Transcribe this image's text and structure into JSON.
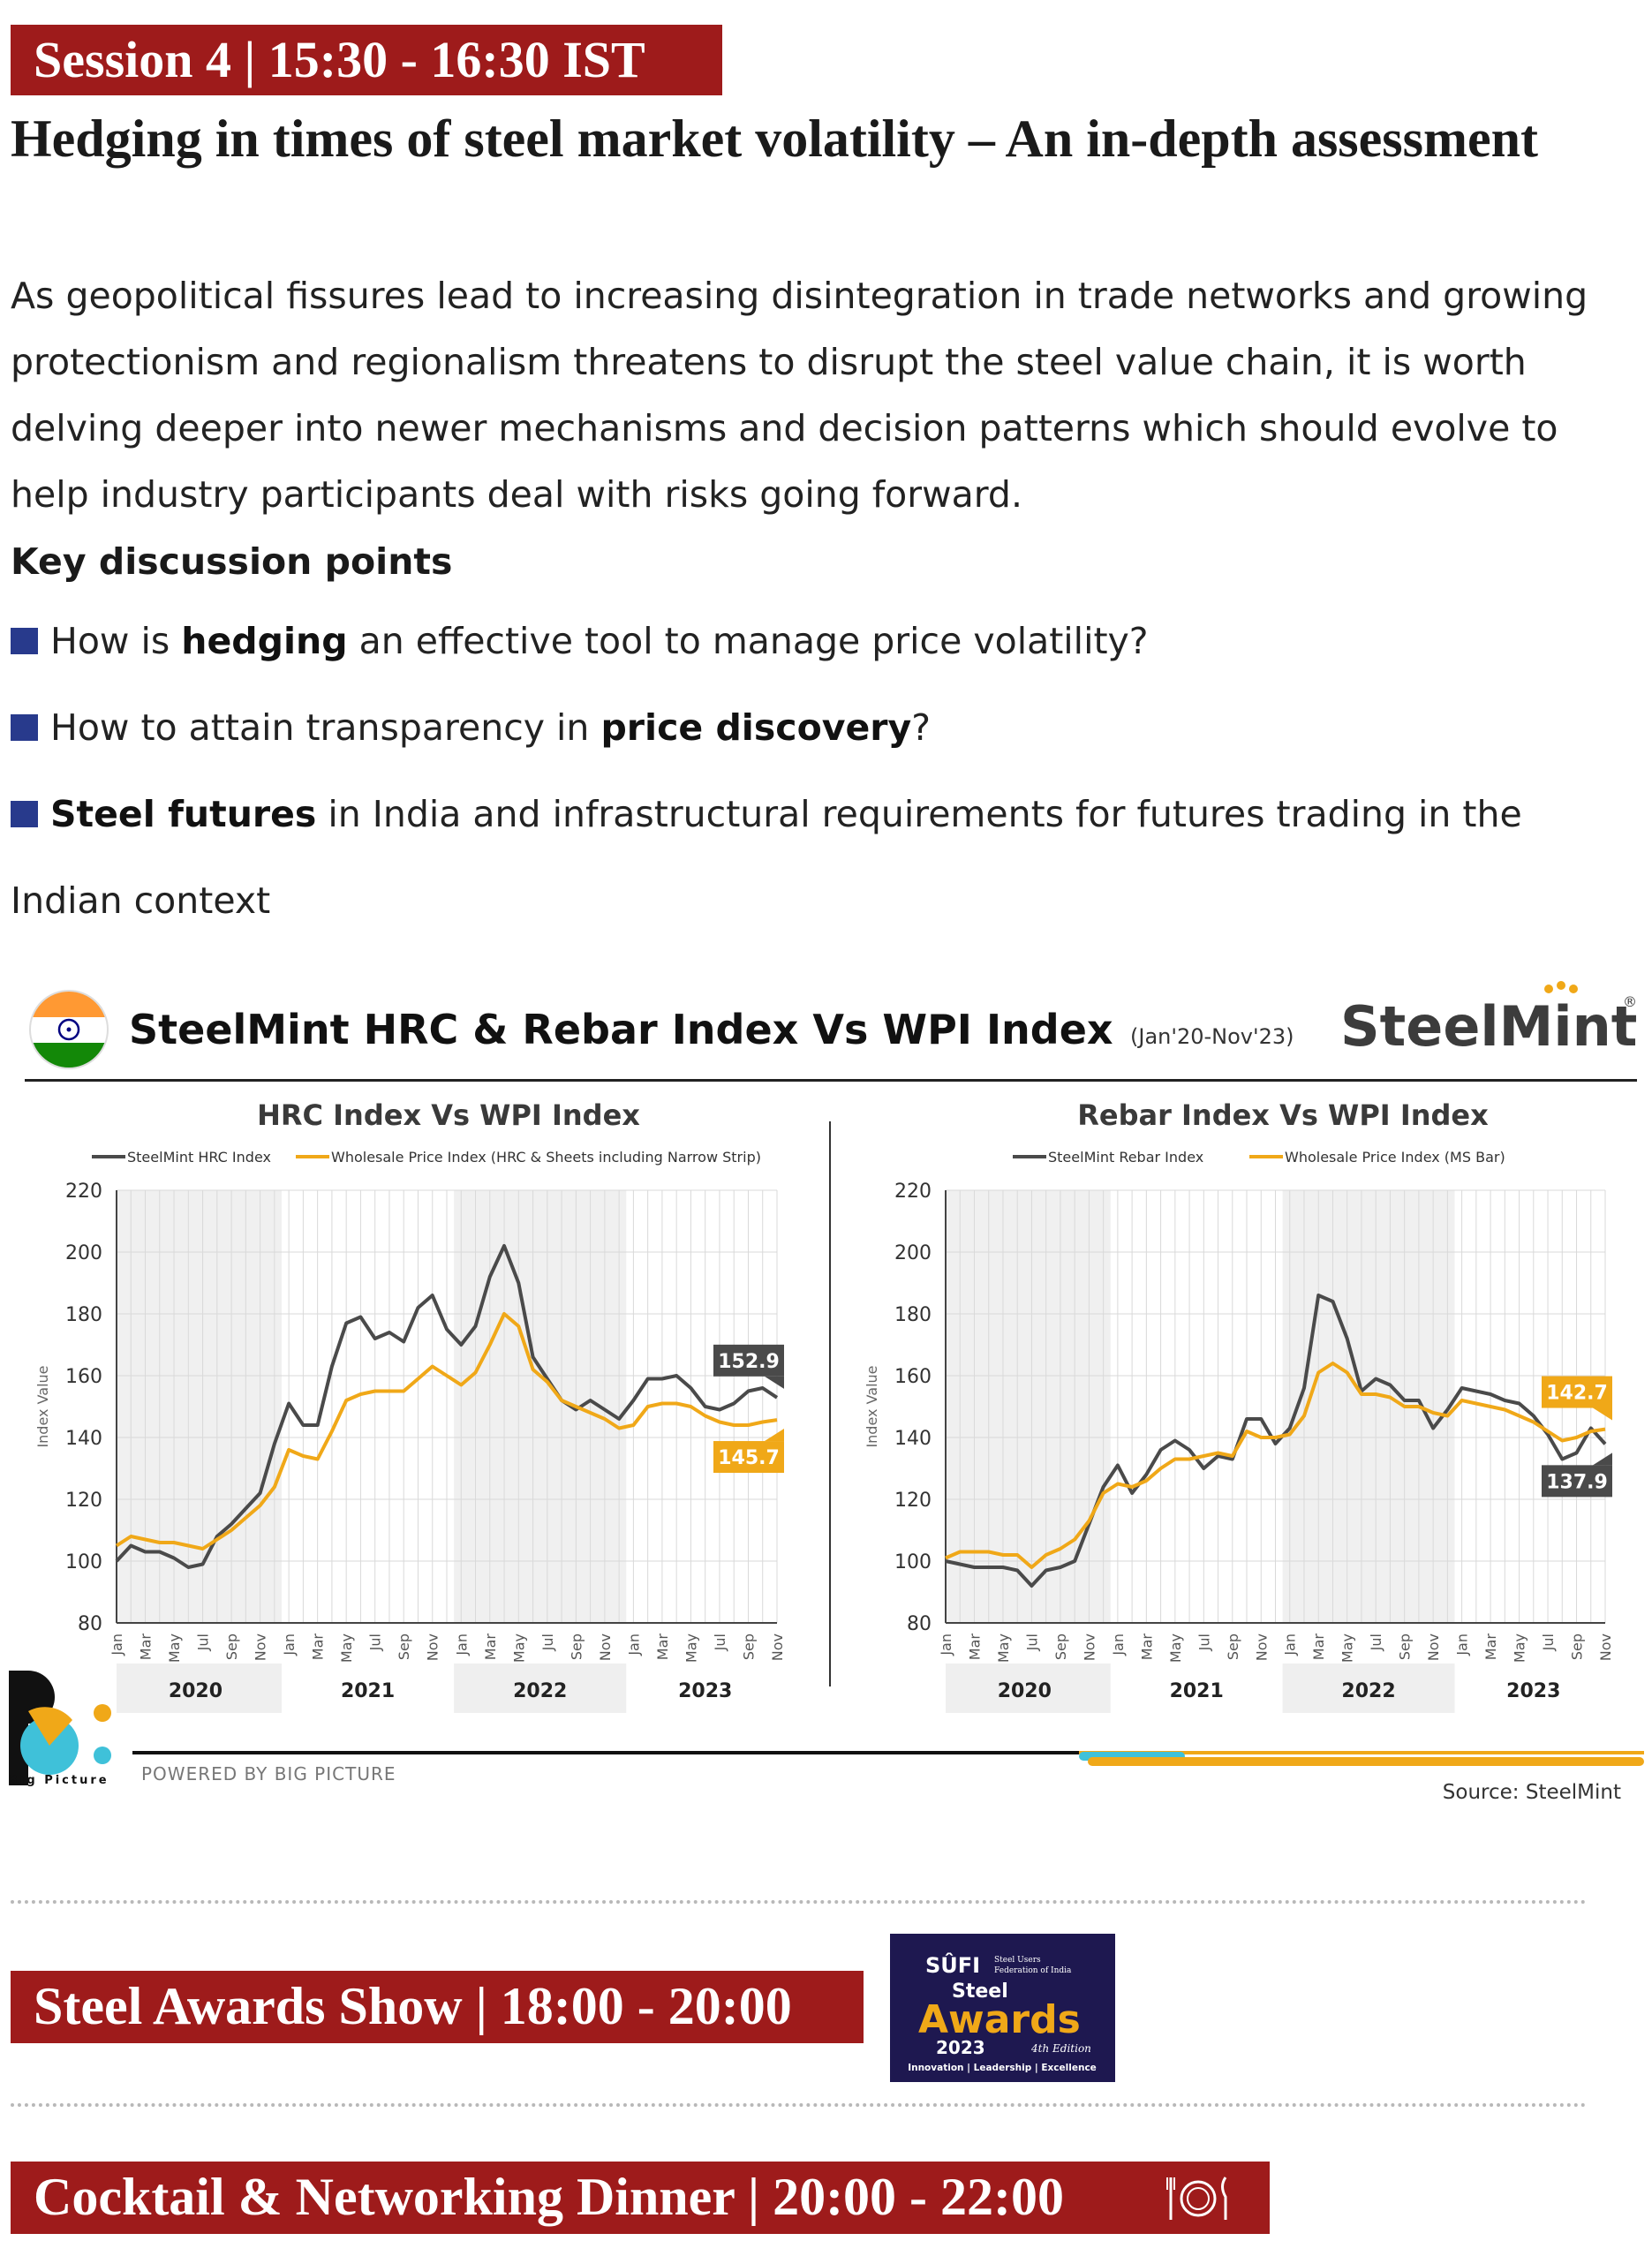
{
  "sessions": {
    "session4": "Session 4 | 15:30 - 16:30 IST",
    "awards": "Steel Awards Show | 18:00 - 20:00",
    "dinner": "Cocktail & Networking Dinner | 20:00 - 22:00"
  },
  "article": {
    "title": "Hedging in times of steel market volatility – An in-depth assessment",
    "intro": "As geopolitical fissures lead to increasing disintegration in trade networks and growing protectionism and regionalism threatens to disrupt the steel value chain, it is worth delving deeper into newer mechanisms and decision patterns which should evolve to help industry participants deal with risks going forward.",
    "key_points_heading": "Key discussion points",
    "bullets": [
      {
        "pre": "How is ",
        "bold": "hedging",
        "post": " an effective tool to manage price volatility?"
      },
      {
        "pre": "How to attain transparency in ",
        "bold": "price discovery",
        "post": "?"
      },
      {
        "pre": "",
        "bold": "Steel futures",
        "post": " in India and infrastructural requirements for futures trading in the Indian context"
      }
    ]
  },
  "infographic": {
    "title": "SteelMint HRC & Rebar Index Vs WPI Index",
    "period": "(Jan'20-Nov'23)",
    "brand": "SteelMint",
    "brand_mark": "®",
    "powered_by": "POWERED BY BIG PICTURE",
    "big_picture_label": "Big Picture",
    "source": "Source: SteelMint"
  },
  "awards_logo": {
    "brand": "SÛFI",
    "org_line1": "Steel Users",
    "org_line2": "Federation of India",
    "steel": "Steel",
    "awards": "Awards",
    "year": "2023",
    "edition": "4th Edition",
    "tagline": "Innovation | Leadership | Excellence"
  },
  "colors": {
    "banner": "#9e1b1b",
    "bullet": "#283a8c",
    "steelmint_line": "#4a4a4a",
    "wpi_line": "#f0a818",
    "callout_dark": "#4a4a4a",
    "callout_orange": "#f0a818"
  },
  "icons": [
    "india-flag-icon",
    "dinner-plate-icon",
    "big-picture-logo-icon"
  ],
  "chart_data": [
    {
      "type": "line",
      "title": "HRC Index Vs WPI Index",
      "ylabel": "Index Value",
      "ylim": [
        80,
        220
      ],
      "yticks": [
        80,
        100,
        120,
        140,
        160,
        180,
        200,
        220
      ],
      "x": [
        "Jan",
        "Feb",
        "Mar",
        "Apr",
        "May",
        "Jun",
        "Jul",
        "Aug",
        "Sep",
        "Oct",
        "Nov",
        "Dec",
        "Jan",
        "Feb",
        "Mar",
        "Apr",
        "May",
        "Jun",
        "Jul",
        "Aug",
        "Sep",
        "Oct",
        "Nov",
        "Dec",
        "Jan",
        "Feb",
        "Mar",
        "Apr",
        "May",
        "Jun",
        "Jul",
        "Aug",
        "Sep",
        "Oct",
        "Nov",
        "Dec",
        "Jan",
        "Feb",
        "Mar",
        "Apr",
        "May",
        "Jun",
        "Jul",
        "Aug",
        "Sep",
        "Oct",
        "Nov"
      ],
      "tick_labels": [
        "Jan",
        "Mar",
        "May",
        "Jul",
        "Sep",
        "Nov",
        "Jan",
        "Mar",
        "May",
        "Jul",
        "Sep",
        "Nov",
        "Jan",
        "Mar",
        "May",
        "Jul",
        "Sep",
        "Nov",
        "Jan",
        "Mar",
        "May",
        "Jul",
        "Sep",
        "Nov"
      ],
      "years": [
        "2020",
        "2021",
        "2022",
        "2023"
      ],
      "grid": true,
      "legend_position": "top",
      "series": [
        {
          "name": "SteelMint HRC Index",
          "color": "#4a4a4a",
          "values": [
            100,
            105,
            103,
            103,
            101,
            98,
            99,
            108,
            112,
            117,
            122,
            138,
            151,
            144,
            144,
            163,
            177,
            179,
            172,
            174,
            171,
            182,
            186,
            175,
            170,
            176,
            192,
            202,
            190,
            166,
            159,
            152,
            149,
            152,
            149,
            146,
            152,
            159,
            159,
            160,
            156,
            150,
            149,
            151,
            155,
            156,
            152.9
          ]
        },
        {
          "name": "Wholesale Price Index (HRC & Sheets including Narrow Strip)",
          "color": "#f0a818",
          "values": [
            105,
            108,
            107,
            106,
            106,
            105,
            104,
            107,
            110,
            114,
            118,
            124,
            136,
            134,
            133,
            142,
            152,
            154,
            155,
            155,
            155,
            159,
            163,
            160,
            157,
            161,
            170,
            180,
            176,
            162,
            158,
            152,
            150,
            148,
            146,
            143,
            144,
            150,
            151,
            151,
            150,
            147,
            145,
            144,
            144,
            145,
            145.7
          ]
        }
      ],
      "callouts": [
        {
          "series": "SteelMint HRC Index",
          "label": "152.9",
          "placement": "above"
        },
        {
          "series": "Wholesale Price Index (HRC & Sheets including Narrow Strip)",
          "label": "145.7",
          "placement": "below"
        }
      ]
    },
    {
      "type": "line",
      "title": "Rebar Index Vs WPI Index",
      "ylabel": "Index Value",
      "ylim": [
        80,
        220
      ],
      "yticks": [
        80,
        100,
        120,
        140,
        160,
        180,
        200,
        220
      ],
      "x": [
        "Jan",
        "Feb",
        "Mar",
        "Apr",
        "May",
        "Jun",
        "Jul",
        "Aug",
        "Sep",
        "Oct",
        "Nov",
        "Dec",
        "Jan",
        "Feb",
        "Mar",
        "Apr",
        "May",
        "Jun",
        "Jul",
        "Aug",
        "Sep",
        "Oct",
        "Nov",
        "Dec",
        "Jan",
        "Feb",
        "Mar",
        "Apr",
        "May",
        "Jun",
        "Jul",
        "Aug",
        "Sep",
        "Oct",
        "Nov",
        "Dec",
        "Jan",
        "Feb",
        "Mar",
        "Apr",
        "May",
        "Jun",
        "Jul",
        "Aug",
        "Sep",
        "Oct",
        "Nov"
      ],
      "tick_labels": [
        "Jan",
        "Mar",
        "May",
        "Jul",
        "Sep",
        "Nov",
        "Jan",
        "Mar",
        "May",
        "Jul",
        "Sep",
        "Nov",
        "Jan",
        "Mar",
        "May",
        "Jul",
        "Sep",
        "Nov",
        "Jan",
        "Mar",
        "May",
        "Jul",
        "Sep",
        "Nov"
      ],
      "years": [
        "2020",
        "2021",
        "2022",
        "2023"
      ],
      "grid": true,
      "legend_position": "top",
      "series": [
        {
          "name": "SteelMint Rebar Index",
          "color": "#4a4a4a",
          "values": [
            100,
            99,
            98,
            98,
            98,
            97,
            92,
            97,
            98,
            100,
            112,
            124,
            131,
            122,
            128,
            136,
            139,
            136,
            130,
            134,
            133,
            146,
            146,
            138,
            143,
            156,
            186,
            184,
            172,
            155,
            159,
            157,
            152,
            152,
            143,
            149,
            156,
            155,
            154,
            152,
            151,
            147,
            141,
            133,
            135,
            143,
            137.9
          ]
        },
        {
          "name": "Wholesale Price Index (MS Bar)",
          "color": "#f0a818",
          "values": [
            101,
            103,
            103,
            103,
            102,
            102,
            98,
            102,
            104,
            107,
            113,
            122,
            125,
            124,
            126,
            130,
            133,
            133,
            134,
            135,
            134,
            142,
            140,
            140,
            141,
            147,
            161,
            164,
            161,
            154,
            154,
            153,
            150,
            150,
            148,
            147,
            152,
            151,
            150,
            149,
            147,
            145,
            142,
            139,
            140,
            142,
            142.7
          ]
        }
      ],
      "callouts": [
        {
          "series": "Wholesale Price Index (MS Bar)",
          "label": "142.7",
          "placement": "above"
        },
        {
          "series": "SteelMint Rebar Index",
          "label": "137.9",
          "placement": "below"
        }
      ]
    }
  ]
}
